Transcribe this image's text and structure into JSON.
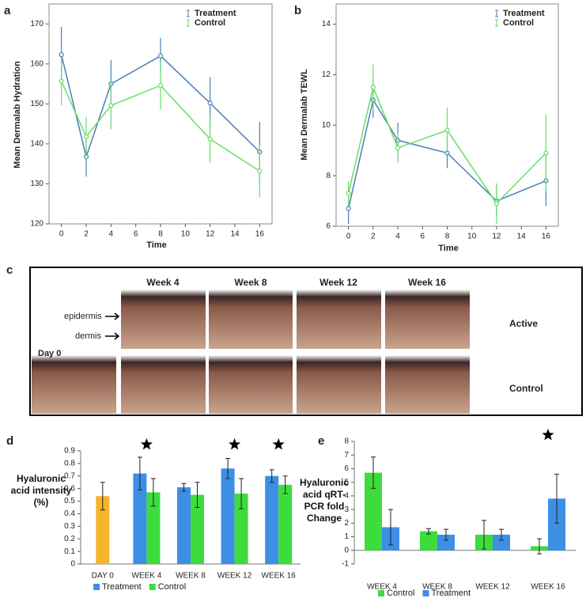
{
  "chart_data": [
    {
      "type": "line",
      "panel": "a",
      "x_label": "Time",
      "y_label": "Mean Dermalab Hydration",
      "x": [
        0,
        2,
        4,
        8,
        12,
        16
      ],
      "xlim": [
        -1,
        17
      ],
      "xticks": [
        0,
        2,
        4,
        6,
        8,
        10,
        12,
        14,
        16
      ],
      "ylim": [
        120,
        175
      ],
      "yticks": [
        120,
        130,
        140,
        150,
        160,
        170
      ],
      "legend": "upper right",
      "series": [
        {
          "name": "Treatment",
          "color": "#4a7fb5",
          "values": [
            162.3,
            136.8,
            155,
            162,
            150.2,
            138
          ],
          "errors": [
            7,
            5,
            6,
            4.5,
            6.5,
            7.5
          ]
        },
        {
          "name": "Control",
          "color": "#66dd66",
          "values": [
            155.7,
            141.8,
            149.6,
            154.6,
            141.2,
            133.2
          ],
          "errors": [
            6,
            5,
            6,
            6,
            6,
            6.5
          ]
        }
      ]
    },
    {
      "type": "line",
      "panel": "b",
      "x_label": "Time",
      "y_label": "Mean Dermalab TEWL",
      "x": [
        0,
        2,
        4,
        8,
        12,
        16
      ],
      "xlim": [
        -1,
        17
      ],
      "xticks": [
        0,
        2,
        4,
        6,
        8,
        10,
        12,
        14,
        16
      ],
      "ylim": [
        6,
        14.8
      ],
      "yticks": [
        6,
        8,
        10,
        12,
        14
      ],
      "legend": "upper right",
      "series": [
        {
          "name": "Treatment",
          "color": "#4a7fb5",
          "values": [
            6.7,
            11.0,
            9.4,
            8.9,
            7.0,
            7.8
          ],
          "errors": [
            0.6,
            0.7,
            0.7,
            0.6,
            0.6,
            1.0
          ]
        },
        {
          "name": "Control",
          "color": "#66dd66",
          "values": [
            7.3,
            11.5,
            9.1,
            9.8,
            6.9,
            8.9
          ],
          "errors": [
            0.5,
            0.9,
            0.6,
            0.9,
            0.8,
            1.5
          ]
        }
      ]
    },
    {
      "type": "bar",
      "panel": "d",
      "y_label": "Hyaluronic acid intensity (%)",
      "categories": [
        "DAY 0",
        "WEEK 4",
        "WEEK 8",
        "WEEK 12",
        "WEEK 16"
      ],
      "ylim": [
        0,
        0.9
      ],
      "yticks": [
        0,
        0.1,
        0.2,
        0.3,
        0.4,
        0.5,
        0.6,
        0.7,
        0.8,
        0.9
      ],
      "legend": "bottom",
      "significant": [
        false,
        true,
        false,
        true,
        true
      ],
      "series": [
        {
          "color": "#f7b52c",
          "values": [
            0.54,
            null,
            null,
            null,
            null
          ],
          "errors": [
            0.11,
            null,
            null,
            null,
            null
          ]
        },
        {
          "name": "Treatment",
          "color": "#3d8fe6",
          "values": [
            null,
            0.72,
            0.61,
            0.76,
            0.7
          ],
          "errors": [
            null,
            0.13,
            0.03,
            0.08,
            0.05
          ]
        },
        {
          "name": "Control",
          "color": "#3ddc3d",
          "values": [
            null,
            0.57,
            0.55,
            0.56,
            0.63
          ],
          "errors": [
            null,
            0.11,
            0.1,
            0.12,
            0.07
          ]
        }
      ]
    },
    {
      "type": "bar",
      "panel": "e",
      "y_label": "Hyaluronic acid qRT-PCR fold Change",
      "categories": [
        "WEEK 4",
        "WEEK 8",
        "WEEK 12",
        "WEEK 16"
      ],
      "ylim": [
        -1,
        8
      ],
      "yticks": [
        -1,
        0,
        1,
        2,
        3,
        4,
        5,
        6,
        7,
        8
      ],
      "legend": "bottom",
      "significant": [
        false,
        false,
        false,
        true
      ],
      "series": [
        {
          "name": "Control",
          "color": "#3ddc3d",
          "values": [
            5.7,
            1.4,
            1.15,
            0.3
          ],
          "errors": [
            1.15,
            0.2,
            1.05,
            0.55
          ]
        },
        {
          "name": "Treatment",
          "color": "#3d8fe6",
          "values": [
            1.7,
            1.15,
            1.15,
            3.8
          ],
          "errors": [
            1.3,
            0.4,
            0.4,
            1.8
          ]
        }
      ]
    }
  ],
  "panel_c": {
    "panel": "c",
    "columns": [
      "Week 4",
      "Week 8",
      "Week 12",
      "Week 16"
    ],
    "rows": [
      "Active",
      "Control"
    ],
    "layers": [
      "epidermis",
      "dermis"
    ],
    "day_label": "Day 0"
  }
}
